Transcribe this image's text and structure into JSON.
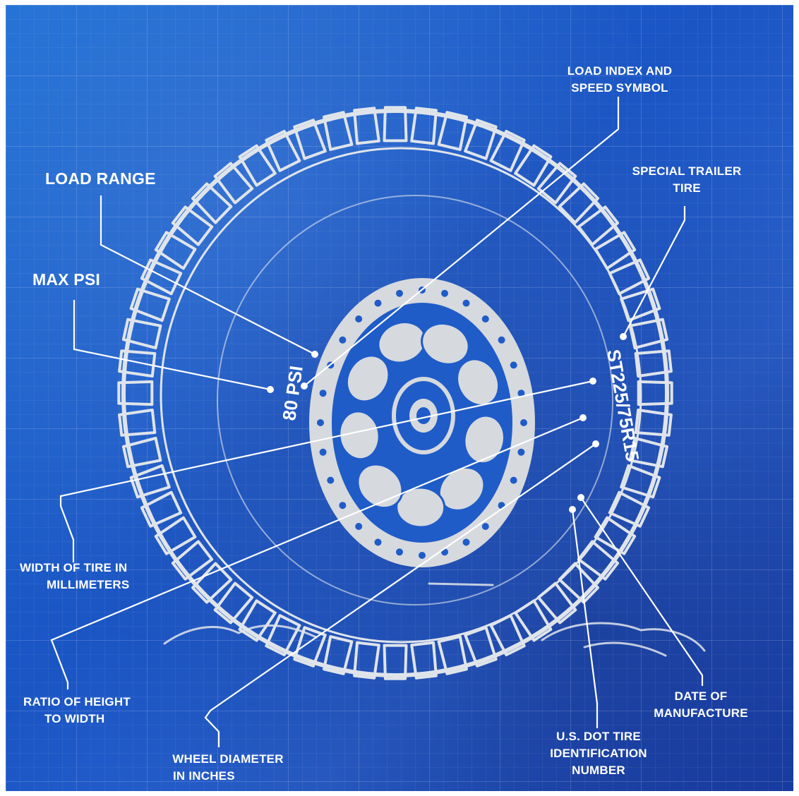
{
  "labels": {
    "load_index": [
      "LOAD INDEX AND",
      "SPEED SYMBOL"
    ],
    "load_range": "LOAD RANGE",
    "special_trailer": [
      "SPECIAL TRAILER",
      "TIRE"
    ],
    "max_psi": "MAX PSI",
    "width_of_tire": [
      "WIDTH OF TIRE IN",
      "MILLIMETERS"
    ],
    "ratio": [
      "RATIO OF HEIGHT",
      "TO WIDTH"
    ],
    "wheel_diameter": [
      "WHEEL DIAMETER",
      "IN INCHES"
    ],
    "dot_number": [
      "U.S. DOT TIRE",
      "IDENTIFICATION",
      "NUMBER"
    ],
    "date_of_manufacture": [
      "DATE OF",
      "MANUFACTURE"
    ]
  },
  "tire": {
    "psi_text": "80 PSI",
    "size_text": "ST225/75R15"
  },
  "colors": {
    "background": "#1e5fcc",
    "line": "#ffffff",
    "tire_fill": "#d6d9de"
  }
}
